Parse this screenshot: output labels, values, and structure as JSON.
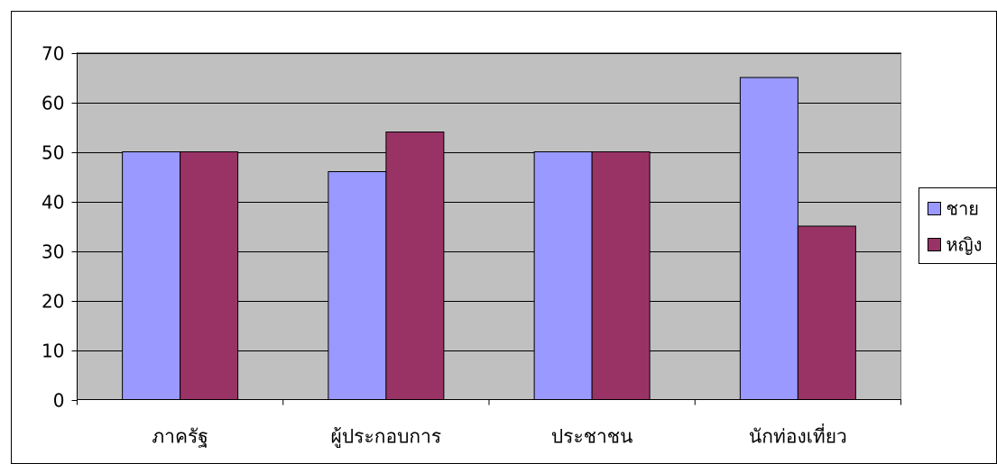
{
  "chart_data": {
    "type": "bar",
    "title": "",
    "xlabel": "",
    "ylabel": "",
    "categories": [
      "ภาครัฐ",
      "ผู้ประกอบการ",
      "ประชาชน",
      "นักท่องเที่ยว"
    ],
    "series": [
      {
        "name": "ชาย",
        "values": [
          50,
          46,
          50,
          65
        ],
        "color": "#9999FF"
      },
      {
        "name": "หญิง",
        "values": [
          50,
          54,
          50,
          35
        ],
        "color": "#993366"
      }
    ],
    "ylim": [
      0,
      70
    ],
    "yticks": [
      0,
      10,
      20,
      30,
      40,
      50,
      60,
      70
    ],
    "grid": true,
    "legend": "right",
    "plot_background": "#C0C0C0"
  }
}
